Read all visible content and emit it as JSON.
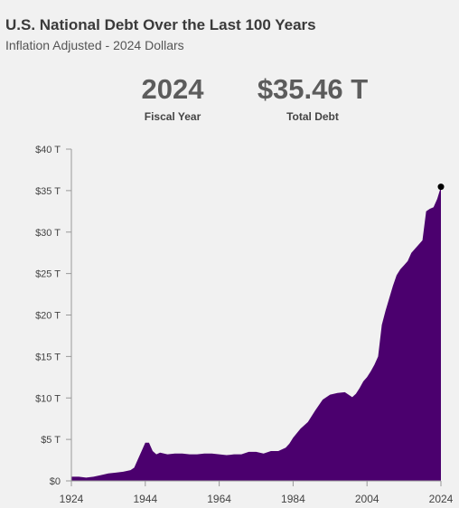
{
  "title": "U.S. National Debt Over the Last 100 Years",
  "subtitle": "Inflation Adjusted - 2024 Dollars",
  "kpis": {
    "year": {
      "value": "2024",
      "label": "Fiscal Year"
    },
    "debt": {
      "value": "$35.46 T",
      "label": "Total Debt"
    }
  },
  "colors": {
    "area": "#4b006e",
    "marker": "#000000",
    "axis": "#999999"
  },
  "chart_data": {
    "type": "area",
    "title": "U.S. National Debt Over the Last 100 Years",
    "ylabel": "",
    "xlabel": "",
    "xlim": [
      1924,
      2024
    ],
    "ylim": [
      0,
      40
    ],
    "x_ticks": [
      1924,
      1944,
      1964,
      1984,
      2004,
      2024
    ],
    "x_tick_labels": [
      "1924",
      "1944",
      "1964",
      "1984",
      "2004",
      "2024"
    ],
    "y_ticks": [
      0,
      5,
      10,
      15,
      20,
      25,
      30,
      35,
      40
    ],
    "y_tick_labels": [
      "$0",
      "$5 T",
      "$10 T",
      "$15 T",
      "$20 T",
      "$25 T",
      "$30 T",
      "$35 T",
      "$40 T"
    ],
    "grid": false,
    "highlight_point": {
      "x": 2024,
      "y": 35.46
    },
    "series": [
      {
        "x": [
          1924,
          1926,
          1928,
          1930,
          1932,
          1934,
          1936,
          1938,
          1940,
          1941,
          1942,
          1943,
          1944,
          1945,
          1946,
          1947,
          1948,
          1950,
          1952,
          1954,
          1956,
          1958,
          1960,
          1962,
          1964,
          1966,
          1968,
          1970,
          1972,
          1974,
          1976,
          1978,
          1980,
          1982,
          1983,
          1984,
          1986,
          1988,
          1990,
          1992,
          1994,
          1996,
          1998,
          2000,
          2001,
          2002,
          2003,
          2004,
          2005,
          2006,
          2007,
          2008,
          2009,
          2010,
          2011,
          2012,
          2013,
          2014,
          2015,
          2016,
          2017,
          2018,
          2019,
          2020,
          2021,
          2022,
          2023,
          2024
        ],
        "y": [
          0.5,
          0.5,
          0.4,
          0.5,
          0.7,
          0.9,
          1.0,
          1.1,
          1.3,
          1.6,
          2.6,
          3.6,
          4.6,
          4.6,
          3.6,
          3.2,
          3.4,
          3.2,
          3.3,
          3.3,
          3.2,
          3.2,
          3.3,
          3.3,
          3.2,
          3.1,
          3.2,
          3.2,
          3.5,
          3.5,
          3.3,
          3.6,
          3.6,
          4.0,
          4.5,
          5.2,
          6.3,
          7.1,
          8.5,
          9.8,
          10.4,
          10.6,
          10.7,
          10.1,
          10.5,
          11.2,
          12.0,
          12.5,
          13.2,
          14.0,
          15.0,
          18.8,
          20.5,
          22.0,
          23.5,
          24.8,
          25.5,
          26.0,
          26.5,
          27.5,
          28.0,
          28.5,
          29.0,
          32.5,
          32.8,
          33.0,
          34.0,
          35.46
        ]
      }
    ]
  }
}
